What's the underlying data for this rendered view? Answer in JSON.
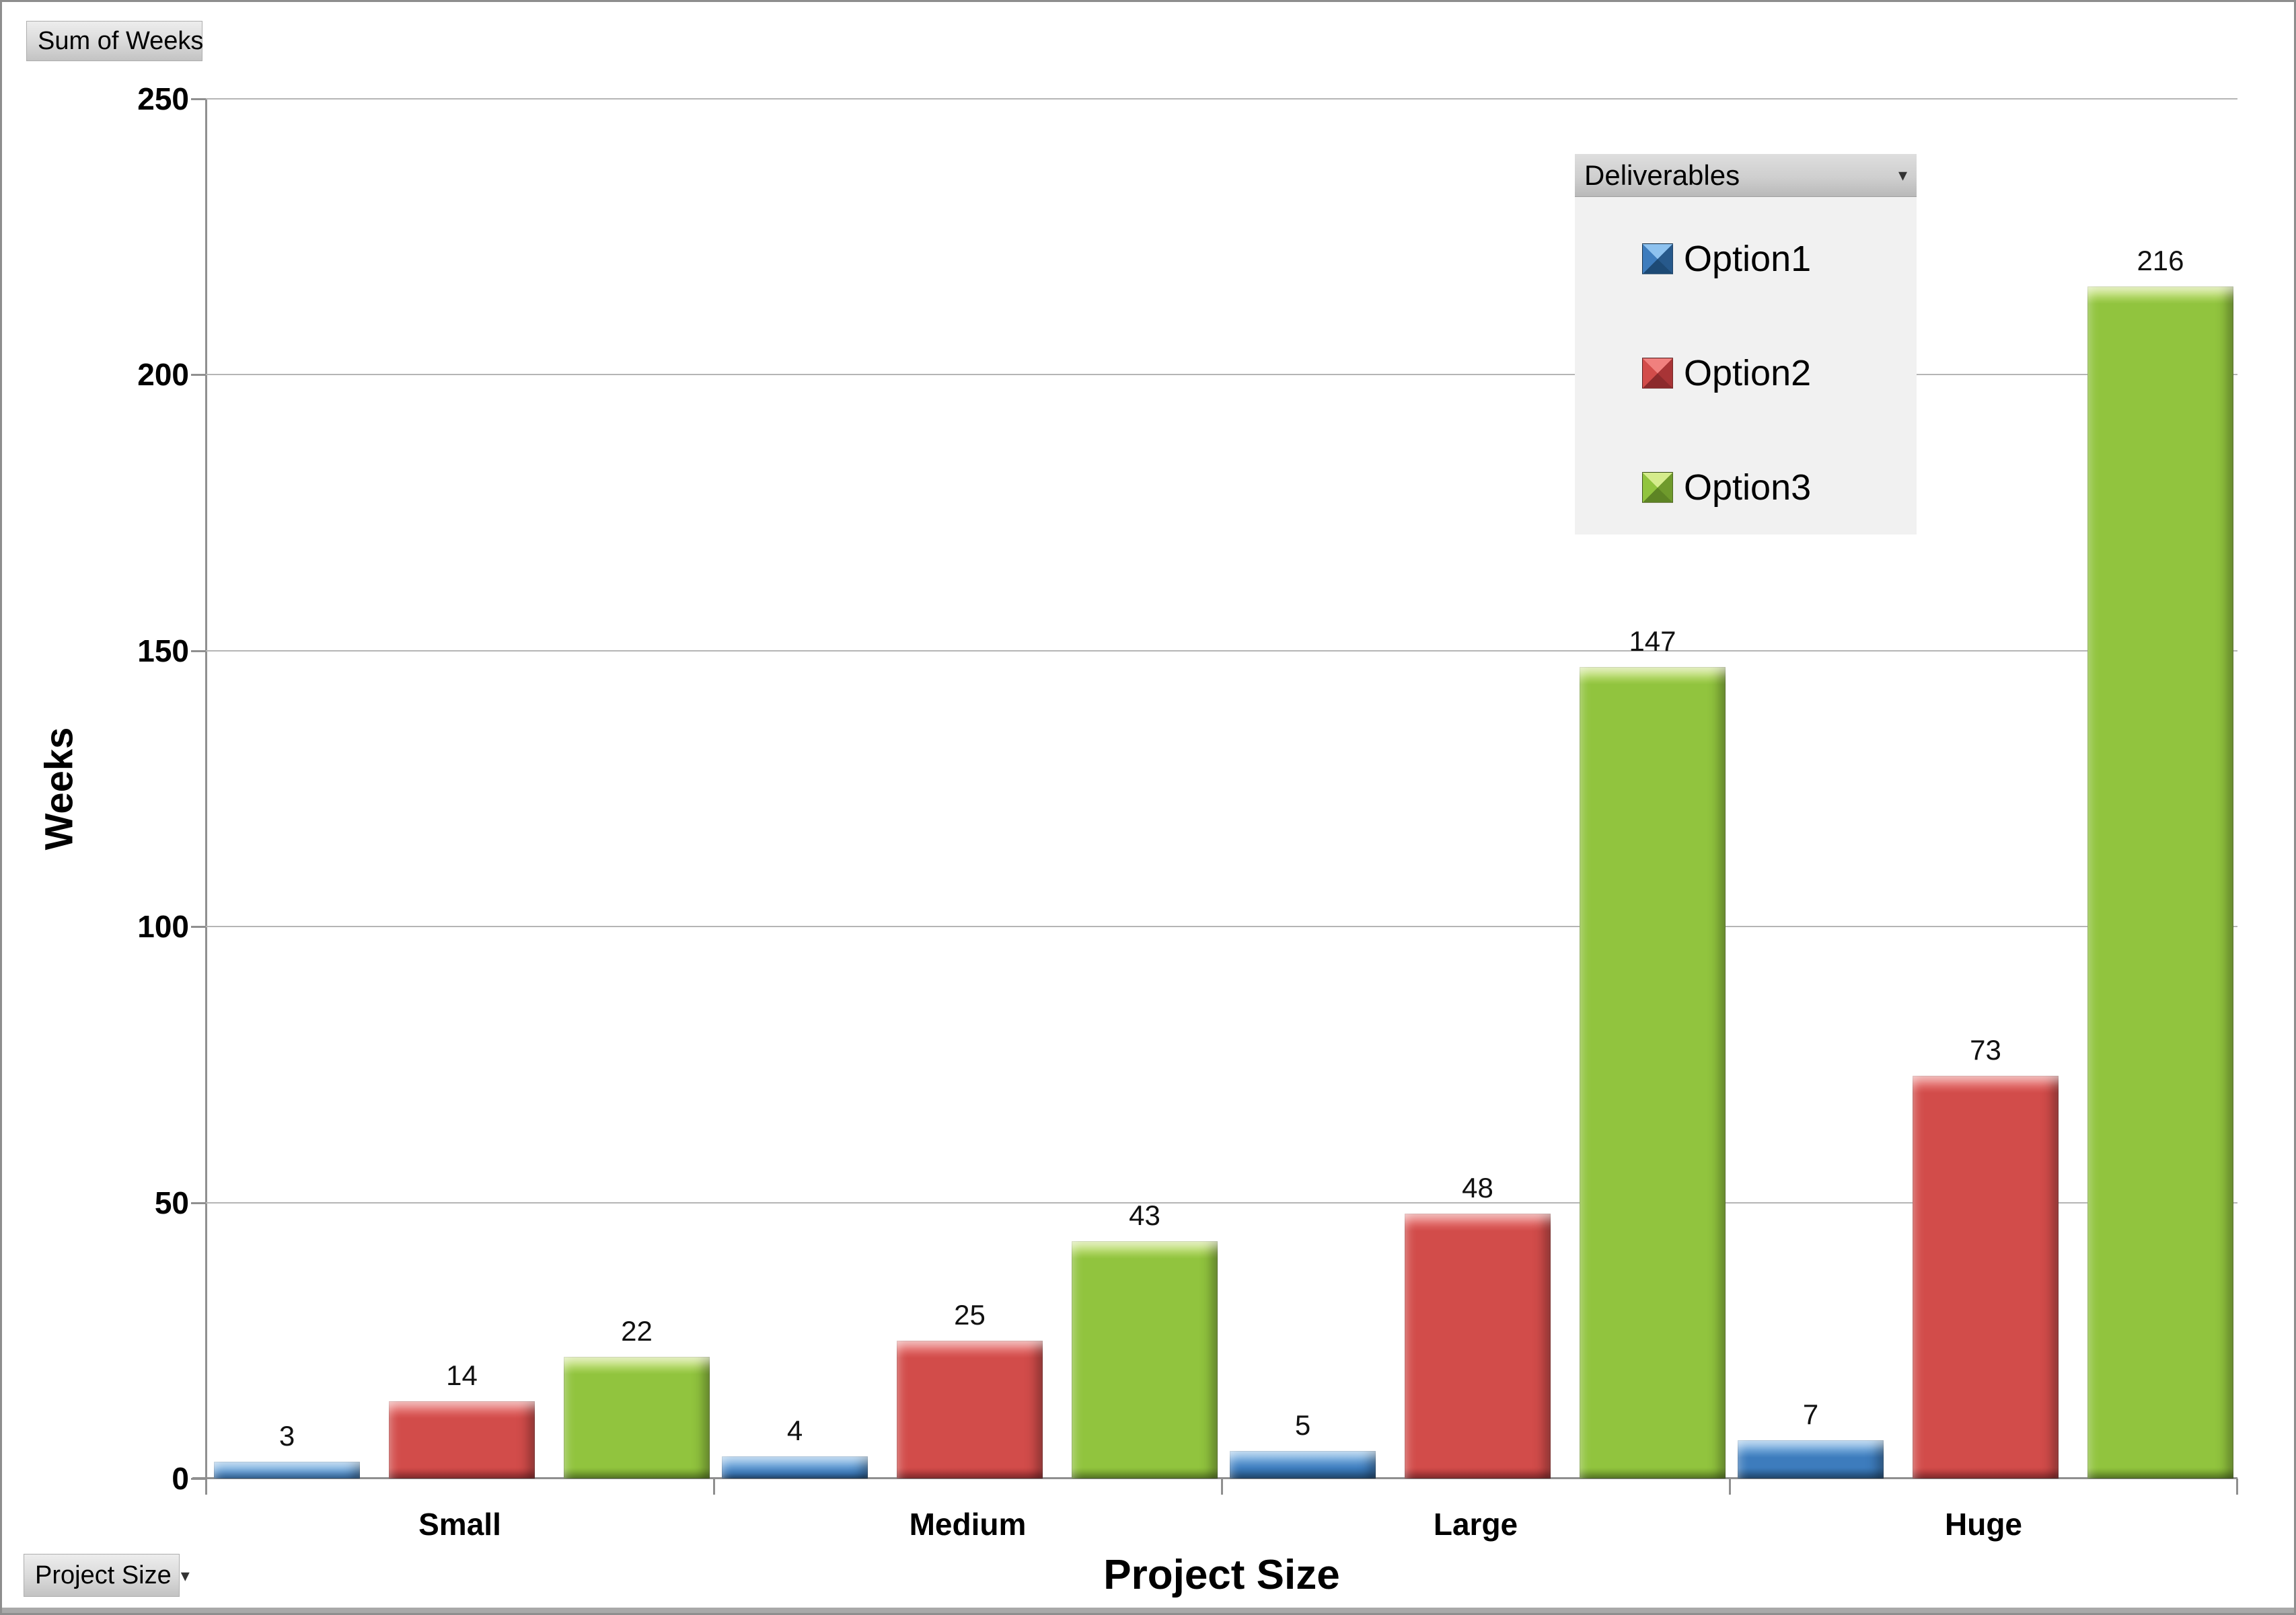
{
  "pivot_buttons": {
    "value_field": {
      "label": "Sum of Weeks"
    },
    "category_field": {
      "label": "Project Size",
      "arrow": "▾"
    },
    "legend_field": {
      "label": "Deliverables",
      "arrow": "▾"
    }
  },
  "axes": {
    "y_title": "Weeks",
    "x_title": "Project Size"
  },
  "chart_data": {
    "type": "bar",
    "title": "Sum of Weeks",
    "categories": [
      "Small",
      "Medium",
      "Large",
      "Huge"
    ],
    "series": [
      {
        "name": "Option1",
        "values": [
          3,
          4,
          5,
          7
        ],
        "color": "#3d7cbd",
        "color_light": "#8ec2ef",
        "color_dark": "#27598b",
        "color_darker": "#1d4a75"
      },
      {
        "name": "Option2",
        "values": [
          14,
          25,
          48,
          73
        ],
        "color": "#d24c4a",
        "color_light": "#f0807e",
        "color_dark": "#a83436",
        "color_darker": "#8c2a2c"
      },
      {
        "name": "Option3",
        "values": [
          22,
          43,
          147,
          216
        ],
        "color": "#91c43e",
        "color_light": "#d5ec8c",
        "color_dark": "#6f9a2c",
        "color_darker": "#5d8424"
      }
    ],
    "xlabel": "Project Size",
    "ylabel": "Weeks",
    "ylim": [
      0,
      250
    ],
    "yticks": [
      0,
      50,
      100,
      150,
      200,
      250
    ],
    "grid": "horizontal",
    "data_labels": true,
    "legend_position": "top-right",
    "legend_title": "Deliverables"
  },
  "colors": {
    "gridline": "#b5b5b5",
    "axis_line": "#8f8f8f",
    "legend_background": "#f1f1f1",
    "button_border": "#aeaeae"
  }
}
